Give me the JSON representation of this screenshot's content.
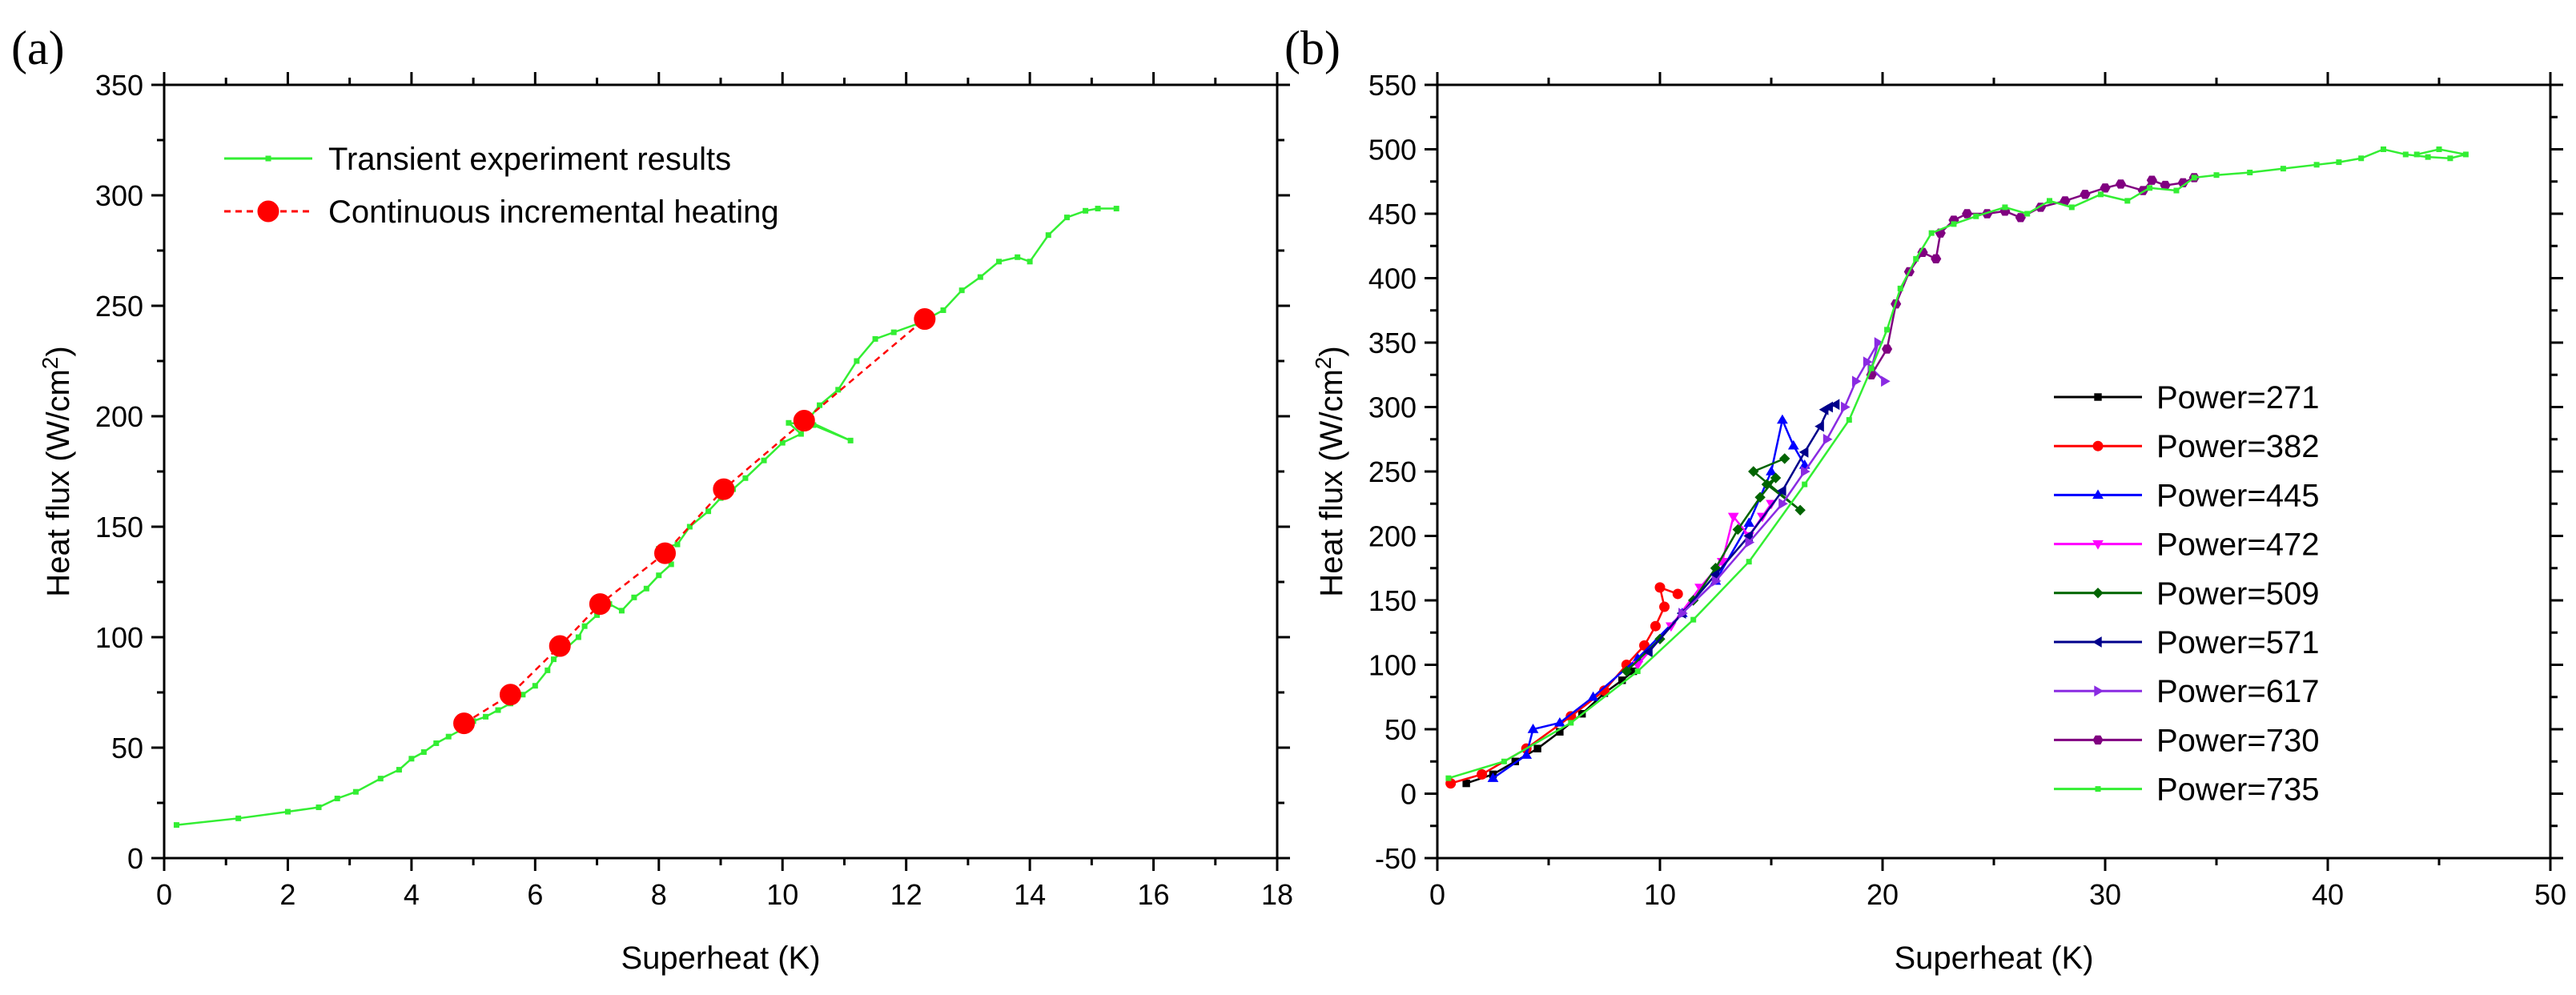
{
  "chart_data": [
    {
      "panel": "(a)",
      "type": "scatter",
      "xlabel": "Superheat (K)",
      "ylabel": "Heat flux (W/cm",
      "ylabel_sup": "2",
      "ylabel_end": ")",
      "xlim": [
        0,
        18
      ],
      "ylim": [
        0,
        350
      ],
      "xticks": [
        0,
        2,
        4,
        6,
        8,
        10,
        12,
        14,
        16,
        18
      ],
      "yticks": [
        0,
        50,
        100,
        150,
        200,
        250,
        300,
        350
      ],
      "legend_position": "top-left",
      "series": [
        {
          "name": "Transient experiment results",
          "color": "#33ee33",
          "style": "line-square",
          "points": [
            [
              0.2,
              15
            ],
            [
              1.2,
              18
            ],
            [
              2.0,
              21
            ],
            [
              2.5,
              23
            ],
            [
              2.8,
              27
            ],
            [
              3.1,
              30
            ],
            [
              3.5,
              36
            ],
            [
              3.8,
              40
            ],
            [
              4.0,
              45
            ],
            [
              4.2,
              48
            ],
            [
              4.4,
              52
            ],
            [
              4.6,
              55
            ],
            [
              4.8,
              58
            ],
            [
              5.0,
              62
            ],
            [
              5.2,
              64
            ],
            [
              5.4,
              67
            ],
            [
              5.6,
              70
            ],
            [
              5.8,
              74
            ],
            [
              6.0,
              78
            ],
            [
              6.2,
              85
            ],
            [
              6.3,
              90
            ],
            [
              6.5,
              95
            ],
            [
              6.7,
              100
            ],
            [
              6.8,
              105
            ],
            [
              7.0,
              110
            ],
            [
              7.2,
              115
            ],
            [
              7.4,
              112
            ],
            [
              7.6,
              118
            ],
            [
              7.8,
              122
            ],
            [
              8.0,
              128
            ],
            [
              8.2,
              133
            ],
            [
              8.0,
              140
            ],
            [
              8.3,
              142
            ],
            [
              8.5,
              150
            ],
            [
              8.8,
              157
            ],
            [
              9.0,
              163
            ],
            [
              9.2,
              167
            ],
            [
              9.4,
              172
            ],
            [
              9.7,
              180
            ],
            [
              10.0,
              188
            ],
            [
              10.3,
              192
            ],
            [
              10.1,
              197
            ],
            [
              10.5,
              196
            ],
            [
              11.1,
              189
            ],
            [
              10.4,
              198
            ],
            [
              10.6,
              205
            ],
            [
              10.9,
              212
            ],
            [
              11.2,
              225
            ],
            [
              11.5,
              235
            ],
            [
              11.8,
              238
            ],
            [
              12.2,
              242
            ],
            [
              12.6,
              248
            ],
            [
              12.9,
              257
            ],
            [
              13.2,
              263
            ],
            [
              13.5,
              270
            ],
            [
              13.8,
              272
            ],
            [
              14.0,
              270
            ],
            [
              14.3,
              282
            ],
            [
              14.6,
              290
            ],
            [
              14.9,
              293
            ],
            [
              15.1,
              294
            ],
            [
              15.4,
              294
            ]
          ]
        },
        {
          "name": "Continuous incremental heating",
          "color": "#ff0000",
          "style": "dashed-circle",
          "points": [
            [
              4.85,
              61
            ],
            [
              5.6,
              74
            ],
            [
              6.4,
              96
            ],
            [
              7.05,
              115
            ],
            [
              8.1,
              138
            ],
            [
              9.05,
              167
            ],
            [
              10.35,
              198
            ],
            [
              12.3,
              244
            ]
          ]
        }
      ]
    },
    {
      "panel": "(b)",
      "type": "line",
      "xlabel": "Superheat (K)",
      "ylabel": "Heat flux (W/cm",
      "ylabel_sup": "2",
      "ylabel_end": ")",
      "xlim": [
        0,
        50
      ],
      "ylim": [
        -50,
        550
      ],
      "xticks": [
        0,
        10,
        20,
        30,
        40,
        50
      ],
      "yticks": [
        -50,
        0,
        50,
        100,
        150,
        200,
        250,
        300,
        350,
        400,
        450,
        500,
        550
      ],
      "legend_position": "bottom-right",
      "series": [
        {
          "name": "Power=271",
          "color": "#000000",
          "marker": "square",
          "points": [
            [
              1.3,
              8
            ],
            [
              2.5,
              15
            ],
            [
              3.5,
              25
            ],
            [
              4.5,
              35
            ],
            [
              5.5,
              48
            ],
            [
              6.5,
              62
            ],
            [
              7.5,
              78
            ],
            [
              8.3,
              88
            ],
            [
              8.8,
              95
            ]
          ]
        },
        {
          "name": "Power=382",
          "color": "#ff0000",
          "marker": "circle",
          "points": [
            [
              0.6,
              8
            ],
            [
              2.0,
              15
            ],
            [
              4.0,
              35
            ],
            [
              6.0,
              60
            ],
            [
              7.5,
              80
            ],
            [
              8.5,
              100
            ],
            [
              9.3,
              115
            ],
            [
              9.8,
              130
            ],
            [
              10.2,
              145
            ],
            [
              10.0,
              160
            ],
            [
              10.8,
              155
            ]
          ]
        },
        {
          "name": "Power=445",
          "color": "#0000ff",
          "marker": "triangle-up",
          "points": [
            [
              2.5,
              12
            ],
            [
              4.0,
              30
            ],
            [
              4.3,
              50
            ],
            [
              5.5,
              55
            ],
            [
              7.0,
              75
            ],
            [
              9.0,
              105
            ],
            [
              11.0,
              140
            ],
            [
              12.5,
              165
            ],
            [
              14.0,
              210
            ],
            [
              15.0,
              250
            ],
            [
              15.5,
              290
            ],
            [
              16.0,
              270
            ],
            [
              16.5,
              255
            ]
          ]
        },
        {
          "name": "Power=472",
          "color": "#ff00ff",
          "marker": "triangle-down",
          "points": [
            [
              9.0,
              100
            ],
            [
              10.5,
              130
            ],
            [
              11.8,
              160
            ],
            [
              12.8,
              180
            ],
            [
              13.3,
              215
            ],
            [
              14.0,
              200
            ],
            [
              14.6,
              215
            ],
            [
              15.0,
              225
            ]
          ]
        },
        {
          "name": "Power=509",
          "color": "#006400",
          "marker": "diamond",
          "points": [
            [
              8.5,
              95
            ],
            [
              10.0,
              120
            ],
            [
              11.5,
              150
            ],
            [
              12.5,
              175
            ],
            [
              13.5,
              205
            ],
            [
              14.5,
              230
            ],
            [
              15.2,
              245
            ],
            [
              14.8,
              240
            ],
            [
              16.3,
              220
            ],
            [
              14.2,
              250
            ],
            [
              15.6,
              260
            ]
          ]
        },
        {
          "name": "Power=571",
          "color": "#00008b",
          "marker": "triangle-left",
          "points": [
            [
              9.5,
              110
            ],
            [
              11.0,
              140
            ],
            [
              12.5,
              170
            ],
            [
              14.0,
              200
            ],
            [
              15.5,
              235
            ],
            [
              16.5,
              265
            ],
            [
              17.2,
              285
            ],
            [
              17.6,
              300
            ],
            [
              17.9,
              302
            ],
            [
              17.4,
              298
            ]
          ]
        },
        {
          "name": "Power=617",
          "color": "#8a2be2",
          "marker": "triangle-right",
          "points": [
            [
              11.0,
              140
            ],
            [
              12.5,
              165
            ],
            [
              14.0,
              195
            ],
            [
              15.5,
              225
            ],
            [
              16.5,
              250
            ],
            [
              17.5,
              275
            ],
            [
              18.3,
              300
            ],
            [
              18.8,
              320
            ],
            [
              19.3,
              335
            ],
            [
              19.8,
              350
            ],
            [
              19.5,
              330
            ],
            [
              20.1,
              320
            ]
          ]
        },
        {
          "name": "Power=730",
          "color": "#800080",
          "marker": "hexagon",
          "points": [
            [
              19.5,
              325
            ],
            [
              20.2,
              345
            ],
            [
              20.6,
              380
            ],
            [
              21.2,
              405
            ],
            [
              21.8,
              420
            ],
            [
              22.4,
              415
            ],
            [
              22.6,
              435
            ],
            [
              23.2,
              445
            ],
            [
              23.8,
              450
            ],
            [
              24.7,
              450
            ],
            [
              25.5,
              452
            ],
            [
              26.2,
              447
            ],
            [
              27.1,
              455
            ],
            [
              28.2,
              460
            ],
            [
              29.1,
              465
            ],
            [
              30.0,
              470
            ],
            [
              30.7,
              473
            ],
            [
              31.7,
              468
            ],
            [
              32.1,
              476
            ],
            [
              32.7,
              472
            ],
            [
              33.5,
              474
            ],
            [
              34.0,
              478
            ]
          ]
        },
        {
          "name": "Power=735",
          "color": "#33ee33",
          "marker": "small-dot",
          "points": [
            [
              0.5,
              12
            ],
            [
              3.0,
              25
            ],
            [
              6.0,
              55
            ],
            [
              9.0,
              95
            ],
            [
              11.5,
              135
            ],
            [
              14.0,
              180
            ],
            [
              16.5,
              240
            ],
            [
              18.5,
              290
            ],
            [
              19.5,
              330
            ],
            [
              20.2,
              360
            ],
            [
              20.8,
              392
            ],
            [
              21.5,
              415
            ],
            [
              22.2,
              435
            ],
            [
              23.2,
              442
            ],
            [
              24.2,
              448
            ],
            [
              25.5,
              455
            ],
            [
              26.5,
              450
            ],
            [
              27.5,
              460
            ],
            [
              28.5,
              455
            ],
            [
              29.8,
              465
            ],
            [
              31.0,
              460
            ],
            [
              32.0,
              470
            ],
            [
              33.2,
              468
            ],
            [
              34.0,
              478
            ],
            [
              35.0,
              480
            ],
            [
              36.5,
              482
            ],
            [
              38.0,
              485
            ],
            [
              39.5,
              488
            ],
            [
              40.5,
              490
            ],
            [
              41.5,
              493
            ],
            [
              42.5,
              500
            ],
            [
              43.5,
              496
            ],
            [
              44.5,
              494
            ],
            [
              45.5,
              493
            ],
            [
              46.2,
              496
            ],
            [
              45.0,
              500
            ],
            [
              44.0,
              496
            ]
          ]
        }
      ]
    }
  ]
}
